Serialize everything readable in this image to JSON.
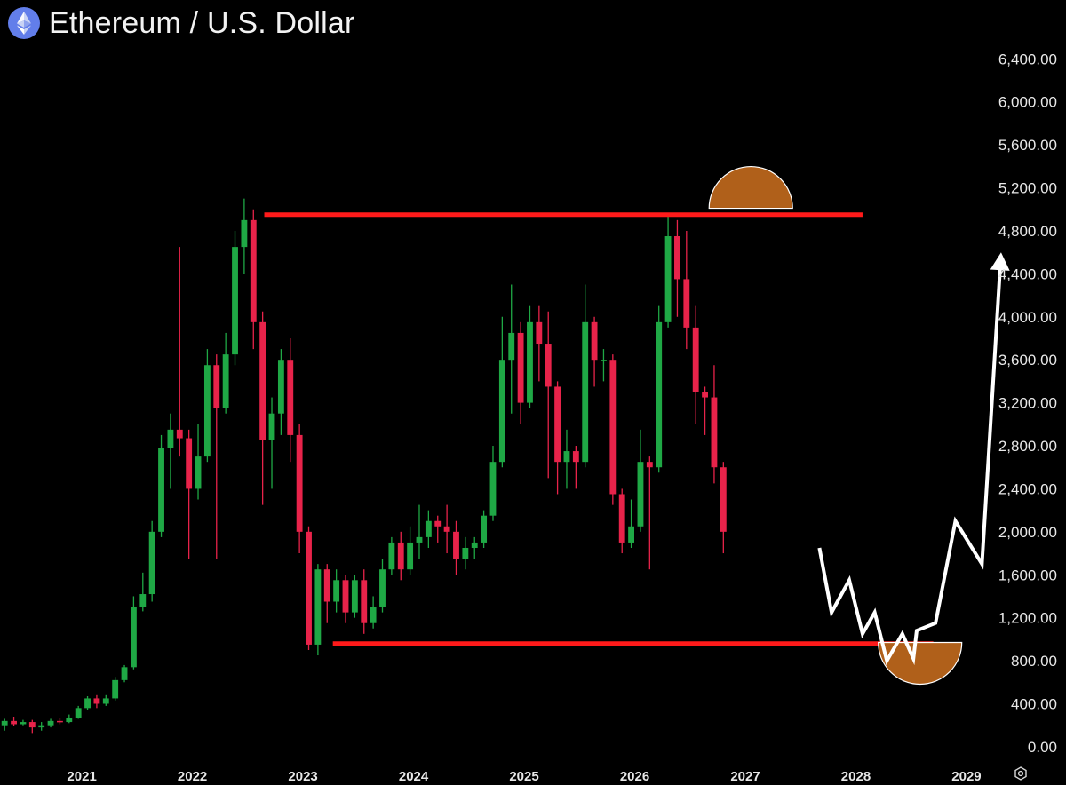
{
  "header": {
    "title": "Ethereum / U.S. Dollar",
    "icon": "ethereum-logo-icon"
  },
  "colors": {
    "background": "#000000",
    "up": "#1fa845",
    "down": "#e8234a",
    "level_line": "#ff1a1a",
    "marker": "#b0601a",
    "projection": "#ffffff"
  },
  "chart_data": {
    "type": "candlestick",
    "title": "Ethereum / U.S. Dollar",
    "xlabel": "",
    "ylabel": "",
    "ylim": [
      -100,
      6700
    ],
    "xlim": [
      2020.26,
      2029.9
    ],
    "grid": false,
    "y_ticks": [
      "6,400.00",
      "6,000.00",
      "5,600.00",
      "5,200.00",
      "4,800.00",
      "4,400.00",
      "4,000.00",
      "3,600.00",
      "3,200.00",
      "2,800.00",
      "2,400.00",
      "2,000.00",
      "1,600.00",
      "1,200.00",
      "800.00",
      "400.00",
      "0.00"
    ],
    "y_tick_values": [
      6400,
      6000,
      5600,
      5200,
      4800,
      4400,
      4000,
      3600,
      3200,
      2800,
      2400,
      2000,
      1600,
      1200,
      800,
      400,
      0
    ],
    "x_ticks": [
      "2021",
      "2022",
      "2023",
      "2024",
      "2025",
      "2026",
      "2027",
      "2028",
      "2029"
    ],
    "x_tick_values": [
      2021,
      2022,
      2023,
      2024,
      2025,
      2026,
      2027,
      2028,
      2029
    ],
    "candles": [
      [
        200,
        240,
        150,
        260
      ],
      [
        240,
        210,
        190,
        280
      ],
      [
        210,
        230,
        200,
        250
      ],
      [
        230,
        180,
        120,
        250
      ],
      [
        180,
        200,
        150,
        230
      ],
      [
        200,
        240,
        180,
        260
      ],
      [
        240,
        230,
        210,
        270
      ],
      [
        230,
        270,
        220,
        300
      ],
      [
        270,
        360,
        260,
        380
      ],
      [
        360,
        450,
        340,
        470
      ],
      [
        450,
        400,
        360,
        480
      ],
      [
        400,
        450,
        380,
        480
      ],
      [
        450,
        620,
        430,
        650
      ],
      [
        620,
        740,
        600,
        760
      ],
      [
        740,
        1300,
        720,
        1400
      ],
      [
        1300,
        1420,
        1260,
        1620
      ],
      [
        1420,
        2000,
        1350,
        2100
      ],
      [
        2000,
        2780,
        1950,
        2900
      ],
      [
        2780,
        2950,
        2400,
        3100
      ],
      [
        2950,
        2870,
        2700,
        4650
      ],
      [
        2870,
        2400,
        1750,
        2950
      ],
      [
        2400,
        2700,
        2300,
        3000
      ],
      [
        2700,
        3550,
        2650,
        3700
      ],
      [
        3550,
        3150,
        1750,
        3650
      ],
      [
        3150,
        3650,
        3100,
        3850
      ],
      [
        3650,
        4650,
        3550,
        4800
      ],
      [
        4650,
        4900,
        4400,
        5100
      ],
      [
        4900,
        3950,
        3700,
        5000
      ],
      [
        3950,
        2850,
        2250,
        4050
      ],
      [
        2850,
        3100,
        2400,
        3250
      ],
      [
        3100,
        3600,
        2900,
        3700
      ],
      [
        3600,
        2900,
        2650,
        3800
      ],
      [
        2900,
        2000,
        1800,
        3000
      ],
      [
        2000,
        950,
        900,
        2050
      ],
      [
        950,
        1650,
        850,
        1700
      ],
      [
        1650,
        1350,
        1150,
        1700
      ],
      [
        1350,
        1550,
        1250,
        1650
      ],
      [
        1550,
        1250,
        1150,
        1600
      ],
      [
        1250,
        1550,
        1200,
        1600
      ],
      [
        1550,
        1150,
        1050,
        1650
      ],
      [
        1150,
        1300,
        1100,
        1400
      ],
      [
        1300,
        1650,
        1250,
        1750
      ],
      [
        1650,
        1900,
        1600,
        1950
      ],
      [
        1900,
        1650,
        1550,
        2000
      ],
      [
        1650,
        1900,
        1600,
        2050
      ],
      [
        1900,
        1950,
        1750,
        2250
      ],
      [
        1950,
        2100,
        1850,
        2200
      ],
      [
        2100,
        2050,
        1900,
        2150
      ],
      [
        2050,
        2000,
        1800,
        2250
      ],
      [
        2000,
        1750,
        1600,
        2100
      ],
      [
        1750,
        1850,
        1650,
        1950
      ],
      [
        1850,
        1900,
        1750,
        1950
      ],
      [
        1900,
        2150,
        1850,
        2200
      ],
      [
        2150,
        2650,
        2100,
        2800
      ],
      [
        2650,
        3600,
        2600,
        4000
      ],
      [
        3600,
        3850,
        3100,
        4300
      ],
      [
        3850,
        3200,
        3000,
        3950
      ],
      [
        3200,
        3950,
        3150,
        4100
      ],
      [
        3950,
        3750,
        3400,
        4100
      ],
      [
        3750,
        3350,
        2500,
        4050
      ],
      [
        3350,
        2650,
        2350,
        3400
      ],
      [
        2650,
        2750,
        2400,
        2950
      ],
      [
        2750,
        2650,
        2400,
        2800
      ],
      [
        2650,
        3950,
        2600,
        4300
      ],
      [
        3950,
        3600,
        3350,
        4000
      ],
      [
        3600,
        3600,
        3400,
        3700
      ],
      [
        3600,
        2350,
        2250,
        3650
      ],
      [
        2350,
        1900,
        1800,
        2400
      ],
      [
        1900,
        2050,
        1850,
        2300
      ],
      [
        2050,
        2650,
        2000,
        2950
      ],
      [
        2650,
        2600,
        1650,
        2700
      ],
      [
        2600,
        3950,
        2550,
        4100
      ],
      [
        3950,
        4750,
        3900,
        4950
      ],
      [
        4750,
        4350,
        4000,
        4900
      ],
      [
        4350,
        3900,
        3700,
        4800
      ],
      [
        3900,
        3300,
        3000,
        4100
      ],
      [
        3300,
        3250,
        2900,
        3350
      ],
      [
        3250,
        2600,
        2450,
        3550
      ],
      [
        2600,
        2000,
        1800,
        2650
      ]
    ],
    "resistance_level": 4950,
    "support_level": 960,
    "projection_path": [
      [
        2027.67,
        1850
      ],
      [
        2027.78,
        1250
      ],
      [
        2027.94,
        1550
      ],
      [
        2028.06,
        1050
      ],
      [
        2028.17,
        1250
      ],
      [
        2028.28,
        800
      ],
      [
        2028.42,
        1050
      ],
      [
        2028.52,
        820
      ],
      [
        2028.55,
        1080
      ],
      [
        2028.72,
        1150
      ],
      [
        2028.9,
        2100
      ],
      [
        2029.14,
        1700
      ],
      [
        2029.31,
        4550
      ]
    ],
    "markers": [
      {
        "type": "semicircle-top",
        "at": [
          2027.05,
          5010
        ]
      },
      {
        "type": "semicircle-bottom",
        "at": [
          2028.58,
          970
        ]
      }
    ]
  }
}
